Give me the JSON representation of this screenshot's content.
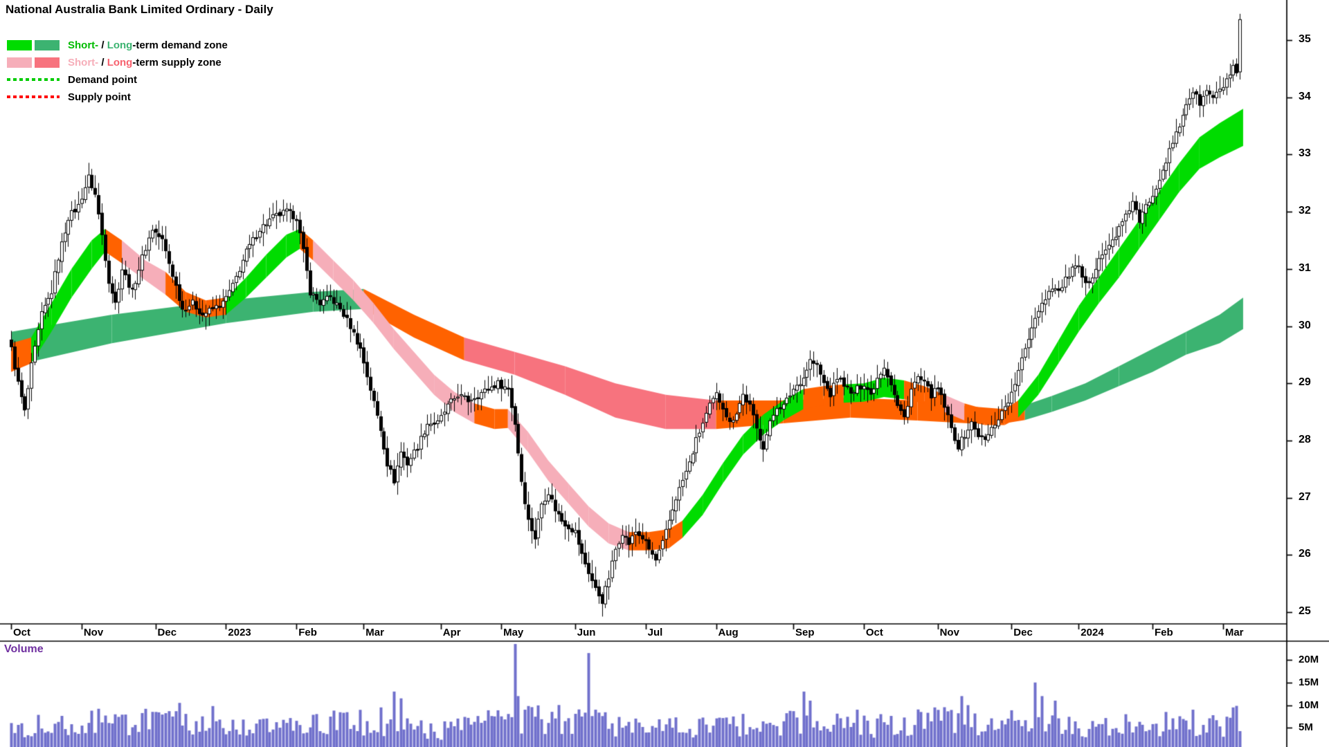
{
  "title": "National Australia Bank Limited Ordinary - Daily",
  "chart_data": {
    "type": "candlestick",
    "title": "National Australia Bank Limited Ordinary - Daily",
    "timeframe": "Daily",
    "days": 367,
    "ylim": [
      25,
      35
    ],
    "legend": {
      "demand_zone": {
        "short_label": "Short-",
        "separator": " / ",
        "long_label": "Long",
        "suffix": "-term demand zone",
        "short_color": "#00BB00",
        "long_color": "#3CB371"
      },
      "supply_zone": {
        "short_label": "Short-",
        "separator": " / ",
        "long_label": "Long",
        "suffix": "-term supply zone",
        "short_color": "#F6AEB9",
        "long_color": "#F7616E"
      },
      "demand_point": {
        "label": "Demand point",
        "color": "#00CC00"
      },
      "supply_point": {
        "label": "Supply point",
        "color": "#FF0000"
      }
    },
    "price_axis": {
      "labels": [
        35,
        34,
        33,
        32,
        31,
        30,
        29,
        28,
        27,
        26,
        25
      ]
    },
    "x_axis": {
      "months": [
        {
          "label": "Oct",
          "days": 21
        },
        {
          "label": "Nov",
          "days": 22
        },
        {
          "label": "Dec",
          "days": 21
        },
        {
          "label": "2023",
          "days": 21
        },
        {
          "label": "Feb",
          "days": 20
        },
        {
          "label": "Mar",
          "days": 23
        },
        {
          "label": "Apr",
          "days": 18
        },
        {
          "label": "May",
          "days": 22
        },
        {
          "label": "Jun",
          "days": 21
        },
        {
          "label": "Jul",
          "days": 21
        },
        {
          "label": "Aug",
          "days": 23
        },
        {
          "label": "Sep",
          "days": 21
        },
        {
          "label": "Oct",
          "days": 22
        },
        {
          "label": "Nov",
          "days": 22
        },
        {
          "label": "Dec",
          "days": 20
        },
        {
          "label": "2024",
          "days": 22
        },
        {
          "label": "Feb",
          "days": 21
        },
        {
          "label": "Mar",
          "days": 6
        }
      ]
    },
    "volume_pane": {
      "label": "Volume",
      "label_color": "#7030A0",
      "axis_labels": [
        "20M",
        "15M",
        "10M",
        "5M"
      ],
      "axis_values": [
        20,
        15,
        10,
        5
      ],
      "bar_color": "#7070CC"
    },
    "band_colors": {
      "g": "#00DC00",
      "dg": "#3CB371",
      "pk": "#F6AEB9",
      "rd": "#F7737E",
      "or": "#FF6200"
    },
    "candle_up_fill": "#FFFFFF",
    "candle_down_fill": "#000000",
    "candle_outline": "#000000",
    "price_anchors": [
      [
        0,
        29.6
      ],
      [
        2,
        29.0
      ],
      [
        4,
        28.5
      ],
      [
        6,
        29.3
      ],
      [
        9,
        30.2
      ],
      [
        12,
        30.6
      ],
      [
        14,
        31.2
      ],
      [
        17,
        31.9
      ],
      [
        20,
        32.1
      ],
      [
        23,
        32.6
      ],
      [
        25,
        32.3
      ],
      [
        27,
        31.6
      ],
      [
        29,
        30.8
      ],
      [
        31,
        30.4
      ],
      [
        33,
        31.0
      ],
      [
        36,
        30.6
      ],
      [
        39,
        31.2
      ],
      [
        42,
        31.7
      ],
      [
        45,
        31.5
      ],
      [
        48,
        30.9
      ],
      [
        51,
        30.3
      ],
      [
        54,
        30.4
      ],
      [
        57,
        30.2
      ],
      [
        60,
        30.3
      ],
      [
        63,
        30.4
      ],
      [
        66,
        30.7
      ],
      [
        70,
        31.3
      ],
      [
        74,
        31.7
      ],
      [
        78,
        31.9
      ],
      [
        82,
        32.0
      ],
      [
        85,
        31.9
      ],
      [
        87,
        31.3
      ],
      [
        89,
        30.6
      ],
      [
        92,
        30.4
      ],
      [
        95,
        30.5
      ],
      [
        98,
        30.3
      ],
      [
        101,
        30.0
      ],
      [
        104,
        29.6
      ],
      [
        107,
        28.9
      ],
      [
        110,
        28.2
      ],
      [
        112,
        27.6
      ],
      [
        114,
        27.3
      ],
      [
        116,
        27.8
      ],
      [
        118,
        27.6
      ],
      [
        121,
        27.9
      ],
      [
        124,
        28.3
      ],
      [
        127,
        28.3
      ],
      [
        130,
        28.6
      ],
      [
        133,
        28.8
      ],
      [
        136,
        28.7
      ],
      [
        139,
        28.8
      ],
      [
        142,
        28.9
      ],
      [
        145,
        29.0
      ],
      [
        148,
        28.9
      ],
      [
        150,
        28.3
      ],
      [
        152,
        27.3
      ],
      [
        154,
        26.6
      ],
      [
        156,
        26.3
      ],
      [
        158,
        26.9
      ],
      [
        160,
        27.1
      ],
      [
        162,
        26.8
      ],
      [
        164,
        26.6
      ],
      [
        166,
        26.5
      ],
      [
        168,
        26.4
      ],
      [
        170,
        26.0
      ],
      [
        172,
        25.7
      ],
      [
        174,
        25.4
      ],
      [
        176,
        25.2
      ],
      [
        178,
        25.6
      ],
      [
        180,
        26.1
      ],
      [
        182,
        26.4
      ],
      [
        184,
        26.2
      ],
      [
        186,
        26.4
      ],
      [
        188,
        26.3
      ],
      [
        190,
        26.1
      ],
      [
        192,
        25.9
      ],
      [
        194,
        26.2
      ],
      [
        196,
        26.6
      ],
      [
        198,
        27.0
      ],
      [
        200,
        27.3
      ],
      [
        202,
        27.6
      ],
      [
        204,
        28.0
      ],
      [
        206,
        28.3
      ],
      [
        208,
        28.6
      ],
      [
        210,
        28.8
      ],
      [
        212,
        28.6
      ],
      [
        214,
        28.3
      ],
      [
        216,
        28.5
      ],
      [
        218,
        28.8
      ],
      [
        220,
        28.6
      ],
      [
        222,
        28.2
      ],
      [
        224,
        27.9
      ],
      [
        226,
        28.3
      ],
      [
        228,
        28.6
      ],
      [
        230,
        28.6
      ],
      [
        233,
        28.9
      ],
      [
        236,
        29.1
      ],
      [
        238,
        29.4
      ],
      [
        240,
        29.3
      ],
      [
        242,
        29.0
      ],
      [
        244,
        28.8
      ],
      [
        246,
        29.1
      ],
      [
        248,
        29.0
      ],
      [
        250,
        28.8
      ],
      [
        252,
        28.9
      ],
      [
        254,
        29.0
      ],
      [
        256,
        28.8
      ],
      [
        258,
        29.1
      ],
      [
        260,
        29.3
      ],
      [
        262,
        29.0
      ],
      [
        264,
        28.6
      ],
      [
        266,
        28.4
      ],
      [
        268,
        28.9
      ],
      [
        270,
        29.1
      ],
      [
        272,
        29.0
      ],
      [
        274,
        28.8
      ],
      [
        276,
        28.9
      ],
      [
        278,
        28.6
      ],
      [
        280,
        28.2
      ],
      [
        282,
        27.9
      ],
      [
        284,
        28.1
      ],
      [
        286,
        28.3
      ],
      [
        288,
        28.1
      ],
      [
        290,
        28.0
      ],
      [
        292,
        28.2
      ],
      [
        294,
        28.4
      ],
      [
        296,
        28.6
      ],
      [
        298,
        28.8
      ],
      [
        300,
        29.2
      ],
      [
        302,
        29.6
      ],
      [
        304,
        30.0
      ],
      [
        306,
        30.3
      ],
      [
        308,
        30.5
      ],
      [
        310,
        30.7
      ],
      [
        312,
        30.6
      ],
      [
        314,
        30.8
      ],
      [
        316,
        31.0
      ],
      [
        318,
        31.0
      ],
      [
        320,
        30.7
      ],
      [
        322,
        30.9
      ],
      [
        324,
        31.2
      ],
      [
        326,
        31.3
      ],
      [
        328,
        31.5
      ],
      [
        330,
        31.7
      ],
      [
        332,
        31.9
      ],
      [
        334,
        32.2
      ],
      [
        336,
        31.8
      ],
      [
        338,
        32.1
      ],
      [
        340,
        32.3
      ],
      [
        342,
        32.6
      ],
      [
        344,
        32.9
      ],
      [
        346,
        33.2
      ],
      [
        348,
        33.5
      ],
      [
        350,
        33.9
      ],
      [
        352,
        34.1
      ],
      [
        354,
        33.9
      ],
      [
        356,
        34.1
      ],
      [
        358,
        34.0
      ],
      [
        360,
        34.1
      ],
      [
        362,
        34.3
      ],
      [
        364,
        34.5
      ],
      [
        365,
        34.4
      ],
      [
        366,
        35.3
      ]
    ],
    "short_band": [
      [
        0,
        29.7,
        29.2,
        "or"
      ],
      [
        6,
        29.8,
        29.35,
        "g"
      ],
      [
        12,
        30.4,
        29.9,
        "g"
      ],
      [
        18,
        31.0,
        30.5,
        "g"
      ],
      [
        24,
        31.5,
        31.0,
        "g"
      ],
      [
        28,
        31.7,
        31.3,
        "or"
      ],
      [
        33,
        31.5,
        31.1,
        "pk"
      ],
      [
        40,
        31.15,
        30.8,
        "pk"
      ],
      [
        46,
        30.95,
        30.55,
        "or"
      ],
      [
        52,
        30.6,
        30.25,
        "or"
      ],
      [
        58,
        30.45,
        30.15,
        "or"
      ],
      [
        64,
        30.5,
        30.2,
        "g"
      ],
      [
        70,
        30.85,
        30.5,
        "g"
      ],
      [
        76,
        31.25,
        30.85,
        "g"
      ],
      [
        82,
        31.6,
        31.2,
        "g"
      ],
      [
        86,
        31.7,
        31.35,
        "or"
      ],
      [
        90,
        31.5,
        31.15,
        "pk"
      ],
      [
        96,
        31.15,
        30.8,
        "pk"
      ],
      [
        102,
        30.8,
        30.45,
        "pk"
      ],
      [
        108,
        30.4,
        30.05,
        "pk"
      ],
      [
        114,
        29.95,
        29.6,
        "pk"
      ],
      [
        120,
        29.55,
        29.2,
        "pk"
      ],
      [
        126,
        29.15,
        28.8,
        "pk"
      ],
      [
        132,
        28.85,
        28.5,
        "pk"
      ],
      [
        138,
        28.65,
        28.3,
        "or"
      ],
      [
        144,
        28.55,
        28.2,
        "or"
      ],
      [
        148,
        28.55,
        28.22,
        "pk"
      ],
      [
        154,
        28.15,
        27.8,
        "pk"
      ],
      [
        160,
        27.65,
        27.3,
        "pk"
      ],
      [
        166,
        27.25,
        26.9,
        "pk"
      ],
      [
        172,
        26.85,
        26.5,
        "pk"
      ],
      [
        178,
        26.55,
        26.2,
        "pk"
      ],
      [
        184,
        26.4,
        26.08,
        "or"
      ],
      [
        190,
        26.4,
        26.08,
        "or"
      ],
      [
        196,
        26.45,
        26.12,
        "or"
      ],
      [
        200,
        26.6,
        26.3,
        "g"
      ],
      [
        206,
        27.05,
        26.7,
        "g"
      ],
      [
        212,
        27.6,
        27.25,
        "g"
      ],
      [
        218,
        28.1,
        27.75,
        "g"
      ],
      [
        224,
        28.45,
        28.1,
        "g"
      ],
      [
        230,
        28.7,
        28.35,
        "g"
      ],
      [
        236,
        28.9,
        28.55,
        "or"
      ],
      [
        242,
        28.95,
        28.62,
        "or"
      ],
      [
        248,
        28.98,
        28.66,
        "g"
      ],
      [
        254,
        29.0,
        28.68,
        "g"
      ],
      [
        260,
        29.1,
        28.76,
        "g"
      ],
      [
        266,
        29.05,
        28.72,
        "or"
      ],
      [
        272,
        28.95,
        28.65,
        "or"
      ],
      [
        278,
        28.8,
        28.5,
        "pk"
      ],
      [
        284,
        28.65,
        28.35,
        "or"
      ],
      [
        290,
        28.55,
        28.27,
        "or"
      ],
      [
        296,
        28.55,
        28.27,
        "or"
      ],
      [
        300,
        28.7,
        28.4,
        "g"
      ],
      [
        306,
        29.15,
        28.8,
        "g"
      ],
      [
        312,
        29.75,
        29.35,
        "g"
      ],
      [
        318,
        30.35,
        29.9,
        "g"
      ],
      [
        324,
        30.85,
        30.4,
        "g"
      ],
      [
        330,
        31.35,
        30.85,
        "g"
      ],
      [
        336,
        31.85,
        31.35,
        "g"
      ],
      [
        342,
        32.35,
        31.85,
        "g"
      ],
      [
        348,
        32.85,
        32.35,
        "g"
      ],
      [
        354,
        33.3,
        32.75,
        "g"
      ],
      [
        360,
        33.55,
        32.95,
        "g"
      ],
      [
        367,
        33.8,
        33.15,
        "g"
      ]
    ],
    "long_band": [
      [
        0,
        29.9,
        29.3,
        "dg"
      ],
      [
        30,
        30.2,
        29.7,
        "dg"
      ],
      [
        64,
        30.45,
        30.05,
        "dg"
      ],
      [
        90,
        30.6,
        30.25,
        "dg"
      ],
      [
        105,
        30.65,
        30.3,
        "or"
      ],
      [
        120,
        30.2,
        29.8,
        "or"
      ],
      [
        135,
        29.8,
        29.4,
        "rd"
      ],
      [
        150,
        29.55,
        29.15,
        "rd"
      ],
      [
        165,
        29.3,
        28.8,
        "rd"
      ],
      [
        180,
        29.0,
        28.4,
        "rd"
      ],
      [
        195,
        28.8,
        28.2,
        "rd"
      ],
      [
        210,
        28.7,
        28.2,
        "or"
      ],
      [
        230,
        28.7,
        28.3,
        "or"
      ],
      [
        250,
        28.75,
        28.4,
        "or"
      ],
      [
        270,
        28.7,
        28.35,
        "or"
      ],
      [
        285,
        28.6,
        28.3,
        "or"
      ],
      [
        296,
        28.55,
        28.3,
        "or"
      ],
      [
        302,
        28.62,
        28.36,
        "dg"
      ],
      [
        310,
        28.78,
        28.5,
        "dg"
      ],
      [
        320,
        29.0,
        28.7,
        "dg"
      ],
      [
        330,
        29.3,
        28.95,
        "dg"
      ],
      [
        340,
        29.6,
        29.2,
        "dg"
      ],
      [
        350,
        29.9,
        29.5,
        "dg"
      ],
      [
        360,
        30.2,
        29.7,
        "dg"
      ],
      [
        367,
        30.5,
        29.95,
        "dg"
      ]
    ],
    "volume_anchors": [
      [
        0,
        5
      ],
      [
        20,
        5.5
      ],
      [
        43,
        6
      ],
      [
        64,
        4.5
      ],
      [
        85,
        5
      ],
      [
        105,
        6
      ],
      [
        128,
        4
      ],
      [
        146,
        6
      ],
      [
        168,
        6.5
      ],
      [
        189,
        4.5
      ],
      [
        210,
        5
      ],
      [
        233,
        5.5
      ],
      [
        254,
        5
      ],
      [
        276,
        6
      ],
      [
        298,
        6
      ],
      [
        318,
        4.5
      ],
      [
        340,
        4.5
      ],
      [
        361,
        5.5
      ],
      [
        366,
        6.5
      ]
    ],
    "volume_spikes": [
      [
        26,
        9.2
      ],
      [
        43,
        8.5
      ],
      [
        50,
        10.5
      ],
      [
        60,
        9.8
      ],
      [
        96,
        8.8
      ],
      [
        110,
        9.5
      ],
      [
        114,
        13
      ],
      [
        116,
        11.5
      ],
      [
        150,
        23.5
      ],
      [
        151,
        12
      ],
      [
        153,
        9
      ],
      [
        172,
        21.5
      ],
      [
        174,
        9
      ],
      [
        215,
        7.5
      ],
      [
        236,
        13
      ],
      [
        238,
        11
      ],
      [
        252,
        9
      ],
      [
        283,
        12
      ],
      [
        285,
        10
      ],
      [
        305,
        15
      ],
      [
        307,
        12
      ],
      [
        311,
        11
      ],
      [
        332,
        8
      ],
      [
        344,
        8.5
      ],
      [
        352,
        9
      ],
      [
        364,
        9.5
      ]
    ]
  }
}
